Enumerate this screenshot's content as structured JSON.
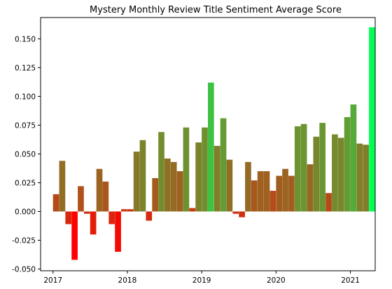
{
  "chart_data": {
    "type": "bar",
    "title": "Mystery Monthly Review Title Sentiment Average Score",
    "xlabel": "",
    "ylabel": "",
    "ylim": [
      -0.0515,
      0.1685
    ],
    "xlim": [
      "2016-11",
      "2021-05"
    ],
    "grid": false,
    "legend": "none",
    "color_scale": {
      "low": "#ff0000",
      "high": "#00ff55",
      "min": -0.042,
      "max": 0.16
    },
    "x_ticks": [
      "2017",
      "2018",
      "2019",
      "2020",
      "2021"
    ],
    "y_ticks": [
      "0.150",
      "0.125",
      "0.100",
      "0.075",
      "0.050",
      "0.025",
      "0.000",
      "-0.025",
      "-0.050"
    ],
    "y_tick_values": [
      0.15,
      0.125,
      0.1,
      0.075,
      0.05,
      0.025,
      0.0,
      -0.025,
      -0.05
    ],
    "x": [
      "2017-01",
      "2017-02",
      "2017-03",
      "2017-04",
      "2017-05",
      "2017-06",
      "2017-07",
      "2017-08",
      "2017-09",
      "2017-10",
      "2017-11",
      "2017-12",
      "2018-01",
      "2018-02",
      "2018-03",
      "2018-04",
      "2018-05",
      "2018-06",
      "2018-07",
      "2018-08",
      "2018-09",
      "2018-10",
      "2018-11",
      "2018-12",
      "2019-01",
      "2019-02",
      "2019-03",
      "2019-04",
      "2019-05",
      "2019-06",
      "2019-07",
      "2019-08",
      "2019-09",
      "2019-10",
      "2019-11",
      "2019-12",
      "2020-01",
      "2020-02",
      "2020-03",
      "2020-04",
      "2020-05",
      "2020-06",
      "2020-07",
      "2020-08",
      "2020-09",
      "2020-10",
      "2020-11",
      "2020-12",
      "2021-01",
      "2021-02",
      "2021-03",
      "2021-04"
    ],
    "values": [
      0.015,
      0.044,
      -0.011,
      -0.042,
      0.022,
      -0.002,
      -0.02,
      0.037,
      0.026,
      -0.011,
      -0.035,
      0.002,
      0.002,
      0.052,
      0.062,
      -0.008,
      0.029,
      0.069,
      0.046,
      0.043,
      0.035,
      0.073,
      0.003,
      0.06,
      0.073,
      0.112,
      0.057,
      0.081,
      0.045,
      -0.002,
      -0.005,
      0.043,
      0.027,
      0.035,
      0.035,
      0.018,
      0.031,
      0.037,
      0.031,
      0.074,
      0.076,
      0.041,
      0.065,
      0.077,
      0.016,
      0.067,
      0.064,
      0.082,
      0.093,
      0.059,
      0.058,
      0.16
    ]
  }
}
